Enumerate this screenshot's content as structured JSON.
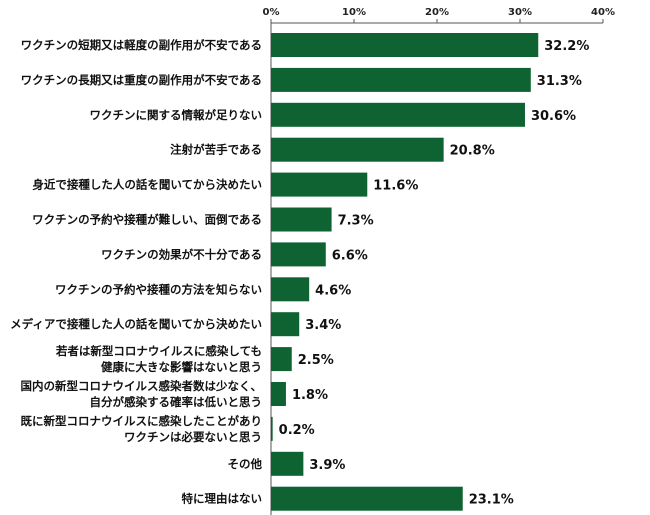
{
  "chart_data": {
    "type": "bar",
    "orientation": "horizontal",
    "categories": [
      [
        "ワクチンの短期又は軽度の副作用が不安である"
      ],
      [
        "ワクチンの長期又は重度の副作用が不安である"
      ],
      [
        "ワクチンに関する情報が足りない"
      ],
      [
        "注射が苦手である"
      ],
      [
        "身近で接種した人の話を聞いてから決めたい"
      ],
      [
        "ワクチンの予約や接種が難しい、面倒である"
      ],
      [
        "ワクチンの効果が不十分である"
      ],
      [
        "ワクチンの予約や接種の方法を知らない"
      ],
      [
        "メディアで接種した人の話を聞いてから決めたい"
      ],
      [
        "若者は新型コロナウイルスに感染しても",
        "健康に大きな影響はないと思う"
      ],
      [
        "国内の新型コロナウイルス感染者数は少なく、",
        "自分が感染する確率は低いと思う"
      ],
      [
        "既に新型コロナウイルスに感染したことがあり",
        "ワクチンは必要ないと思う"
      ],
      [
        "その他"
      ],
      [
        "特に理由はない"
      ]
    ],
    "values": [
      32.2,
      31.3,
      30.6,
      20.8,
      11.6,
      7.3,
      6.6,
      4.6,
      3.4,
      2.5,
      1.8,
      0.2,
      3.9,
      23.1
    ],
    "value_labels": [
      "32.2%",
      "31.3%",
      "30.6%",
      "20.8%",
      "11.6%",
      "7.3%",
      "6.6%",
      "4.6%",
      "3.4%",
      "2.5%",
      "1.8%",
      "0.2%",
      "3.9%",
      "23.1%"
    ],
    "xlim": [
      0,
      40
    ],
    "xticks": [
      0,
      10,
      20,
      30,
      40
    ],
    "xtick_labels": [
      "0%",
      "10%",
      "20%",
      "30%",
      "40%"
    ],
    "axis_position": "top",
    "grid": false,
    "bar_color": "#0f6332"
  }
}
